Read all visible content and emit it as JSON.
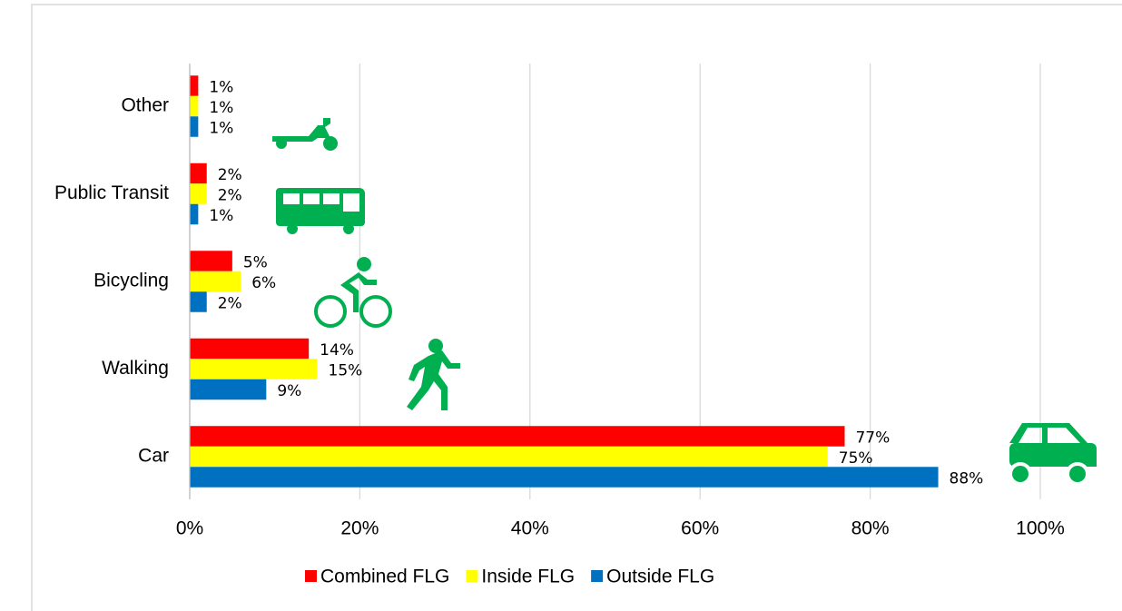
{
  "chart_data": {
    "type": "bar",
    "orientation": "horizontal",
    "categories": [
      "Other",
      "Public Transit",
      "Bicycling",
      "Walking",
      "Car"
    ],
    "series": [
      {
        "name": "Combined FLG",
        "color": "#ff0000",
        "values": [
          1,
          2,
          5,
          14,
          77
        ],
        "value_labels": [
          "1%",
          "2%",
          "5%",
          "14%",
          "77%"
        ]
      },
      {
        "name": "Inside FLG",
        "color": "#ffff00",
        "values": [
          1,
          2,
          6,
          15,
          75
        ],
        "value_labels": [
          "1%",
          "2%",
          "6%",
          "15%",
          "75%"
        ]
      },
      {
        "name": "Outside FLG",
        "color": "#0070c0",
        "values": [
          1,
          1,
          2,
          9,
          88
        ],
        "value_labels": [
          "1%",
          "1%",
          "2%",
          "9%",
          "88%"
        ]
      }
    ],
    "xlim": [
      0,
      100
    ],
    "xticks": [
      {
        "value": 0,
        "label": "0%"
      },
      {
        "value": 20,
        "label": "20%"
      },
      {
        "value": 40,
        "label": "40%"
      },
      {
        "value": 60,
        "label": "60%"
      },
      {
        "value": 80,
        "label": "80%"
      },
      {
        "value": 100,
        "label": "100%"
      }
    ],
    "grid": true,
    "legend": "bottom"
  }
}
